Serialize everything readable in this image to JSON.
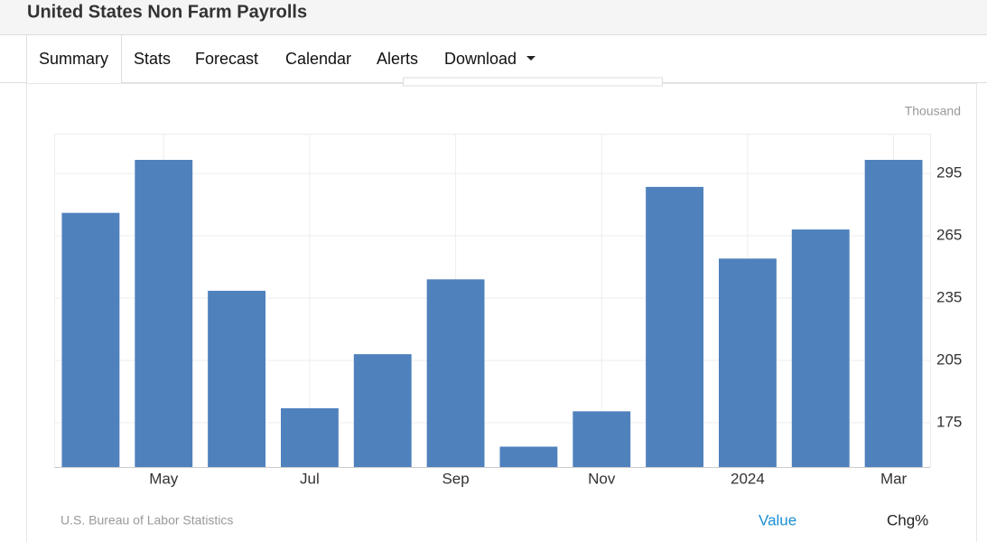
{
  "header": {
    "title": "United States Non Farm Payrolls"
  },
  "tabs": [
    "Summary",
    "Stats",
    "Forecast",
    "Calendar",
    "Alerts",
    "Download"
  ],
  "chart_data": {
    "type": "bar",
    "y_label": "Thousand",
    "categories": [
      null,
      "May",
      null,
      "Jul",
      null,
      "Sep",
      null,
      "Nov",
      null,
      "2024",
      null,
      "Mar"
    ],
    "values": [
      276,
      301.5,
      238.5,
      182,
      208,
      244,
      163.5,
      180.5,
      288.5,
      254,
      268,
      301.5
    ],
    "color": "#4f81bd",
    "ylim": [
      153.7,
      314.1
    ],
    "yticks": [
      175,
      205,
      235,
      265,
      295
    ],
    "grid": true,
    "source": "U.S. Bureau of Labor Statistics",
    "legend": [
      "Value",
      "Chg%"
    ]
  }
}
